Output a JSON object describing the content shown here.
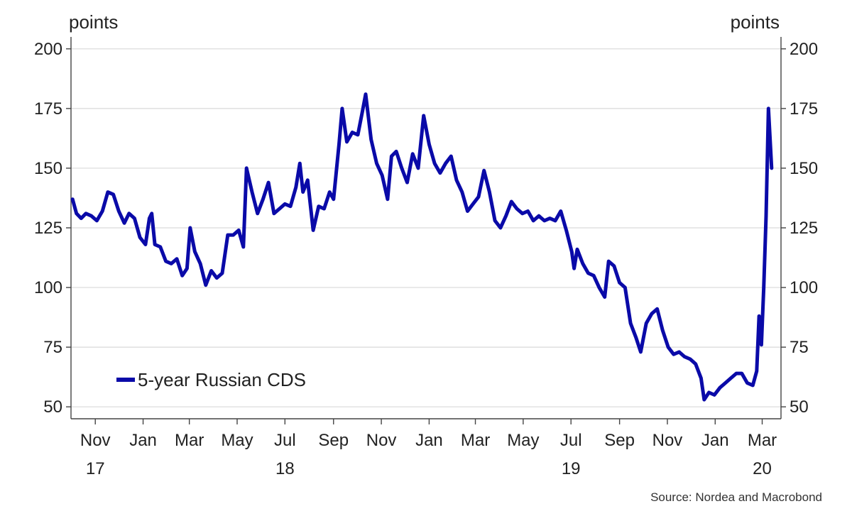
{
  "chart_data": {
    "type": "line",
    "units_left": "points",
    "units_right": "points",
    "source": "Source: Nordea and Macrobond",
    "ylim": [
      45,
      205
    ],
    "yticks": [
      50,
      75,
      100,
      125,
      150,
      175,
      200
    ],
    "x_range": [
      "2017-10-01",
      "2020-03-25"
    ],
    "month_ticks": [
      {
        "label": "Nov",
        "date": "2017-11-01"
      },
      {
        "label": "Jan",
        "date": "2018-01-01"
      },
      {
        "label": "Mar",
        "date": "2018-03-01"
      },
      {
        "label": "May",
        "date": "2018-05-01"
      },
      {
        "label": "Jul",
        "date": "2018-07-01"
      },
      {
        "label": "Sep",
        "date": "2018-09-01"
      },
      {
        "label": "Nov",
        "date": "2018-11-01"
      },
      {
        "label": "Jan",
        "date": "2019-01-01"
      },
      {
        "label": "Mar",
        "date": "2019-03-01"
      },
      {
        "label": "May",
        "date": "2019-05-01"
      },
      {
        "label": "Jul",
        "date": "2019-07-01"
      },
      {
        "label": "Sep",
        "date": "2019-09-01"
      },
      {
        "label": "Nov",
        "date": "2019-11-01"
      },
      {
        "label": "Jan",
        "date": "2020-01-01"
      },
      {
        "label": "Mar",
        "date": "2020-03-01"
      }
    ],
    "year_labels": [
      {
        "label": "17",
        "date": "2017-11-01"
      },
      {
        "label": "18",
        "date": "2018-07-01"
      },
      {
        "label": "19",
        "date": "2019-07-01"
      },
      {
        "label": "20",
        "date": "2020-03-01"
      }
    ],
    "legend_position": "bottom-left",
    "grid": true,
    "series": [
      {
        "name": "5-year Russian CDS",
        "color": "#0a0aa8",
        "points": [
          [
            "2017-10-03",
            137
          ],
          [
            "2017-10-08",
            131
          ],
          [
            "2017-10-14",
            129
          ],
          [
            "2017-10-20",
            131
          ],
          [
            "2017-10-27",
            130
          ],
          [
            "2017-11-03",
            128
          ],
          [
            "2017-11-10",
            132
          ],
          [
            "2017-11-17",
            140
          ],
          [
            "2017-11-24",
            139
          ],
          [
            "2017-12-01",
            132
          ],
          [
            "2017-12-08",
            127
          ],
          [
            "2017-12-14",
            131
          ],
          [
            "2017-12-21",
            129
          ],
          [
            "2017-12-28",
            121
          ],
          [
            "2018-01-04",
            118
          ],
          [
            "2018-01-09",
            129
          ],
          [
            "2018-01-12",
            131
          ],
          [
            "2018-01-16",
            118
          ],
          [
            "2018-01-23",
            117
          ],
          [
            "2018-01-30",
            111
          ],
          [
            "2018-02-06",
            110
          ],
          [
            "2018-02-13",
            112
          ],
          [
            "2018-02-20",
            105
          ],
          [
            "2018-02-26",
            108
          ],
          [
            "2018-03-02",
            125
          ],
          [
            "2018-03-08",
            115
          ],
          [
            "2018-03-15",
            110
          ],
          [
            "2018-03-22",
            101
          ],
          [
            "2018-03-29",
            107
          ],
          [
            "2018-04-05",
            104
          ],
          [
            "2018-04-12",
            106
          ],
          [
            "2018-04-19",
            122
          ],
          [
            "2018-04-26",
            122
          ],
          [
            "2018-05-03",
            124
          ],
          [
            "2018-05-09",
            117
          ],
          [
            "2018-05-13",
            150
          ],
          [
            "2018-05-20",
            140
          ],
          [
            "2018-05-27",
            131
          ],
          [
            "2018-06-03",
            137
          ],
          [
            "2018-06-10",
            144
          ],
          [
            "2018-06-17",
            131
          ],
          [
            "2018-06-24",
            133
          ],
          [
            "2018-07-01",
            135
          ],
          [
            "2018-07-08",
            134
          ],
          [
            "2018-07-15",
            142
          ],
          [
            "2018-07-20",
            152
          ],
          [
            "2018-07-24",
            140
          ],
          [
            "2018-07-30",
            145
          ],
          [
            "2018-08-06",
            124
          ],
          [
            "2018-08-13",
            134
          ],
          [
            "2018-08-20",
            133
          ],
          [
            "2018-08-27",
            140
          ],
          [
            "2018-09-01",
            137
          ],
          [
            "2018-09-08",
            160
          ],
          [
            "2018-09-12",
            175
          ],
          [
            "2018-09-18",
            161
          ],
          [
            "2018-09-25",
            165
          ],
          [
            "2018-10-02",
            164
          ],
          [
            "2018-10-08",
            174
          ],
          [
            "2018-10-12",
            181
          ],
          [
            "2018-10-19",
            162
          ],
          [
            "2018-10-26",
            152
          ],
          [
            "2018-11-02",
            147
          ],
          [
            "2018-11-09",
            137
          ],
          [
            "2018-11-14",
            155
          ],
          [
            "2018-11-20",
            157
          ],
          [
            "2018-11-27",
            150
          ],
          [
            "2018-12-04",
            144
          ],
          [
            "2018-12-11",
            156
          ],
          [
            "2018-12-18",
            150
          ],
          [
            "2018-12-25",
            172
          ],
          [
            "2019-01-01",
            160
          ],
          [
            "2019-01-08",
            152
          ],
          [
            "2019-01-15",
            148
          ],
          [
            "2019-01-22",
            152
          ],
          [
            "2019-01-29",
            155
          ],
          [
            "2019-02-05",
            145
          ],
          [
            "2019-02-12",
            140
          ],
          [
            "2019-02-19",
            132
          ],
          [
            "2019-02-26",
            135
          ],
          [
            "2019-03-05",
            138
          ],
          [
            "2019-03-12",
            149
          ],
          [
            "2019-03-19",
            140
          ],
          [
            "2019-03-26",
            128
          ],
          [
            "2019-04-02",
            125
          ],
          [
            "2019-04-09",
            130
          ],
          [
            "2019-04-16",
            136
          ],
          [
            "2019-04-23",
            133
          ],
          [
            "2019-04-30",
            131
          ],
          [
            "2019-05-07",
            132
          ],
          [
            "2019-05-14",
            128
          ],
          [
            "2019-05-21",
            130
          ],
          [
            "2019-05-28",
            128
          ],
          [
            "2019-06-04",
            129
          ],
          [
            "2019-06-11",
            128
          ],
          [
            "2019-06-18",
            132
          ],
          [
            "2019-06-25",
            124
          ],
          [
            "2019-07-02",
            115
          ],
          [
            "2019-07-05",
            108
          ],
          [
            "2019-07-09",
            116
          ],
          [
            "2019-07-16",
            110
          ],
          [
            "2019-07-23",
            106
          ],
          [
            "2019-07-30",
            105
          ],
          [
            "2019-08-06",
            100
          ],
          [
            "2019-08-13",
            96
          ],
          [
            "2019-08-18",
            111
          ],
          [
            "2019-08-25",
            109
          ],
          [
            "2019-09-01",
            102
          ],
          [
            "2019-09-08",
            100
          ],
          [
            "2019-09-15",
            85
          ],
          [
            "2019-09-22",
            79
          ],
          [
            "2019-09-28",
            73
          ],
          [
            "2019-10-05",
            85
          ],
          [
            "2019-10-12",
            89
          ],
          [
            "2019-10-19",
            91
          ],
          [
            "2019-10-26",
            82
          ],
          [
            "2019-11-02",
            75
          ],
          [
            "2019-11-09",
            72
          ],
          [
            "2019-11-16",
            73
          ],
          [
            "2019-11-23",
            71
          ],
          [
            "2019-11-30",
            70
          ],
          [
            "2019-12-07",
            68
          ],
          [
            "2019-12-14",
            62
          ],
          [
            "2019-12-18",
            53
          ],
          [
            "2019-12-24",
            56
          ],
          [
            "2019-12-31",
            55
          ],
          [
            "2020-01-07",
            58
          ],
          [
            "2020-01-14",
            60
          ],
          [
            "2020-01-21",
            62
          ],
          [
            "2020-01-28",
            64
          ],
          [
            "2020-02-04",
            64
          ],
          [
            "2020-02-11",
            60
          ],
          [
            "2020-02-18",
            59
          ],
          [
            "2020-02-23",
            65
          ],
          [
            "2020-02-26",
            88
          ],
          [
            "2020-02-29",
            76
          ],
          [
            "2020-03-03",
            100
          ],
          [
            "2020-03-06",
            130
          ],
          [
            "2020-03-09",
            175
          ],
          [
            "2020-03-13",
            150
          ]
        ]
      }
    ]
  }
}
